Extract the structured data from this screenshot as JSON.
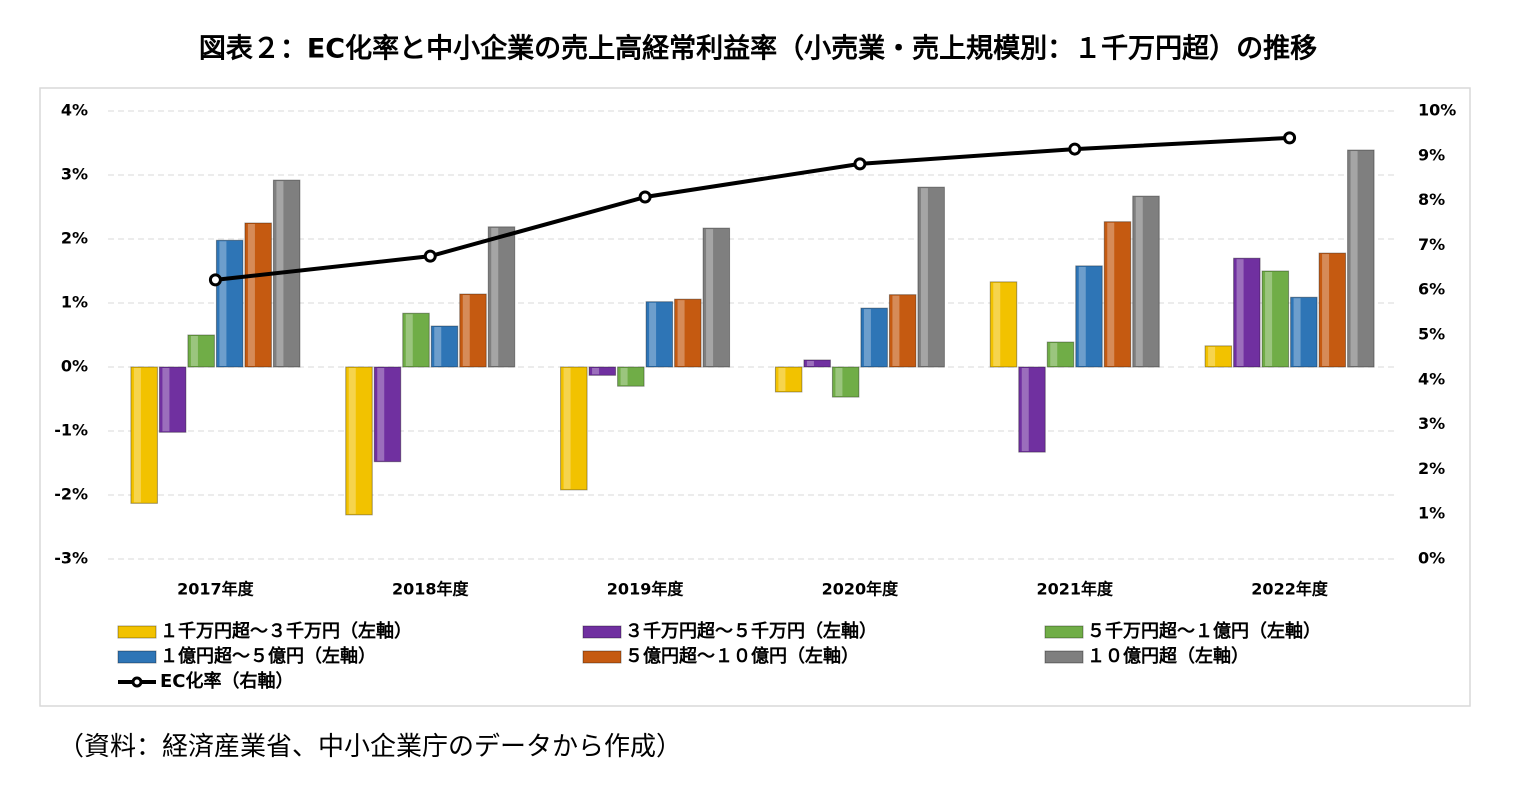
{
  "chart_data": {
    "type": "bar",
    "title": "図表２：EC化率と中小企業の売上高経常利益率（小売業・売上規模別：１千万円超）の推移",
    "note": "（資料：経済産業省、中小企業庁のデータから作成）",
    "categories": [
      "2017年度",
      "2018年度",
      "2019年度",
      "2020年度",
      "2021年度",
      "2022年度"
    ],
    "series": [
      {
        "name": "１千万円超～３千万円（左軸）",
        "color": "#f2c200",
        "values": [
          -2.13,
          -2.31,
          -1.92,
          -0.39,
          1.33,
          0.33
        ]
      },
      {
        "name": "３千万円超～５千万円（左軸）",
        "color": "#7030a0",
        "values": [
          -1.02,
          -1.48,
          -0.13,
          0.11,
          -1.33,
          1.7
        ]
      },
      {
        "name": "５千万円超～１億円（左軸）",
        "color": "#70ad47",
        "values": [
          0.5,
          0.84,
          -0.3,
          -0.47,
          0.39,
          1.5
        ]
      },
      {
        "name": "１億円超～５億円（左軸）",
        "color": "#2e75b6",
        "values": [
          1.98,
          0.64,
          1.02,
          0.92,
          1.58,
          1.09
        ]
      },
      {
        "name": "５億円超～１０億円（左軸）",
        "color": "#c55a11",
        "values": [
          2.25,
          1.14,
          1.06,
          1.13,
          2.27,
          1.78
        ]
      },
      {
        "name": "１０億円超（左軸）",
        "color": "#7f7f7f",
        "values": [
          2.92,
          2.19,
          2.17,
          2.81,
          2.67,
          3.39
        ]
      },
      {
        "name": "EC化率（右軸）",
        "color": "#000000",
        "type": "line",
        "axis": "y2",
        "values": [
          6.23,
          6.76,
          8.08,
          8.82,
          9.15,
          9.4
        ]
      }
    ],
    "ylim": [
      -3,
      4
    ],
    "yticks": [
      {
        "value": -3,
        "label": "-3%"
      },
      {
        "value": -2,
        "label": "-2%"
      },
      {
        "value": -1,
        "label": "-1%"
      },
      {
        "value": 0,
        "label": "0%"
      },
      {
        "value": 1,
        "label": "1%"
      },
      {
        "value": 2,
        "label": "2%"
      },
      {
        "value": 3,
        "label": "3%"
      },
      {
        "value": 4,
        "label": "4%"
      }
    ],
    "y2lim": [
      0,
      10
    ],
    "y2ticks": [
      {
        "value": 0,
        "label": "0%"
      },
      {
        "value": 1,
        "label": "1%"
      },
      {
        "value": 2,
        "label": "2%"
      },
      {
        "value": 3,
        "label": "3%"
      },
      {
        "value": 4,
        "label": "4%"
      },
      {
        "value": 5,
        "label": "5%"
      },
      {
        "value": 6,
        "label": "6%"
      },
      {
        "value": 7,
        "label": "7%"
      },
      {
        "value": 8,
        "label": "8%"
      },
      {
        "value": 9,
        "label": "9%"
      },
      {
        "value": 10,
        "label": "10%"
      }
    ],
    "grid": true
  }
}
